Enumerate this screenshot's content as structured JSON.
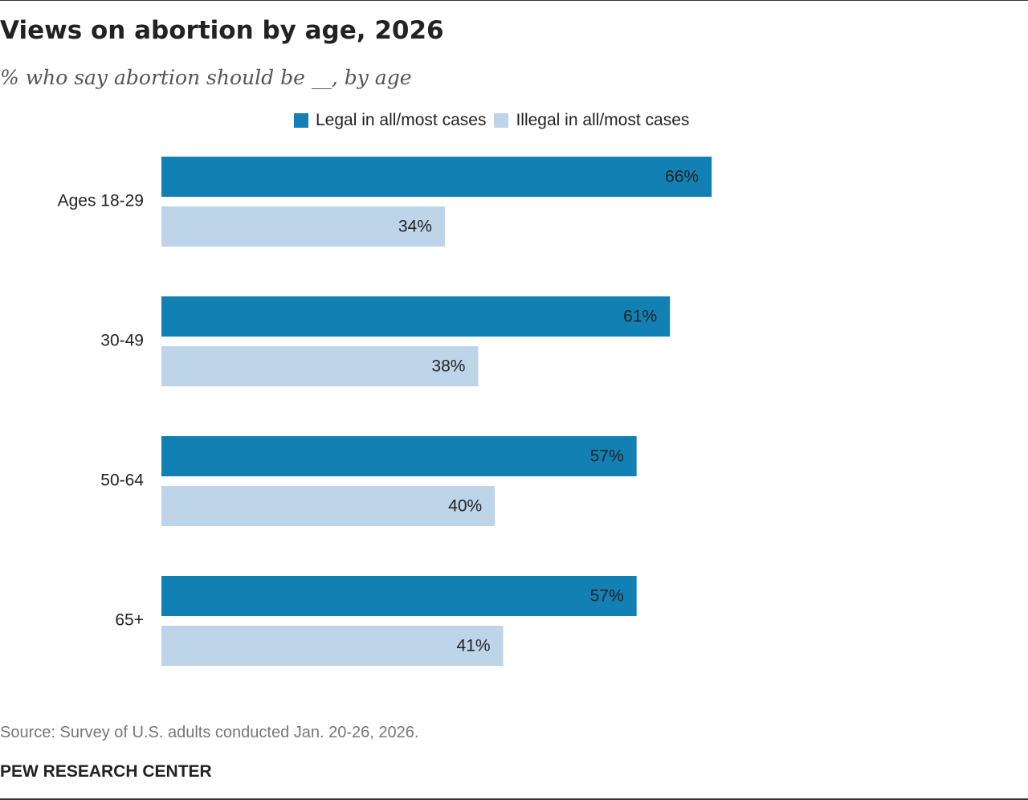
{
  "chart_data": {
    "type": "bar",
    "orientation": "horizontal",
    "title": "Views on abortion by age, 2026",
    "subtitle": "% who say abortion should be __, by age",
    "categories": [
      "Ages 18-29",
      "30-49",
      "50-64",
      "65+"
    ],
    "series": [
      {
        "name": "Legal in all/most cases",
        "color": "#1380b4",
        "values": [
          66,
          61,
          57,
          57
        ],
        "labels": [
          "66%",
          "61%",
          "57%",
          "57%"
        ]
      },
      {
        "name": "Illegal in all/most cases",
        "color": "#bed5e9",
        "values": [
          34,
          38,
          40,
          41
        ],
        "labels": [
          "34%",
          "38%",
          "40%",
          "41%"
        ]
      }
    ],
    "xlim": [
      0,
      100
    ],
    "grid": false,
    "legend_position": "top"
  },
  "footer": {
    "source": "Source: Survey of U.S. adults conducted Jan. 20-26, 2026.",
    "brand": "PEW RESEARCH CENTER"
  }
}
